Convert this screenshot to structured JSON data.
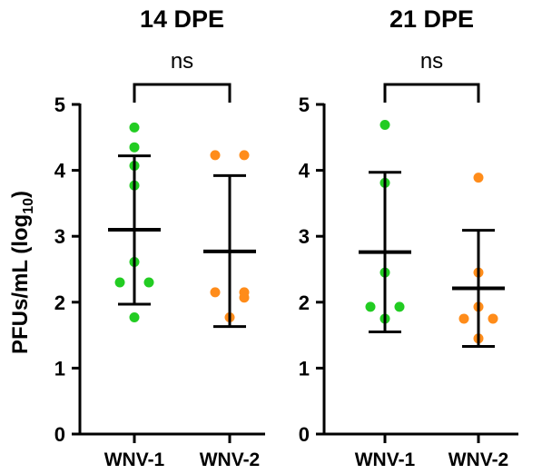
{
  "chart_data": {
    "type": "scatter",
    "ylabel": "PFUs/mL (log",
    "ylabel_sub": "10",
    "ylabel_close": ")",
    "ylim": [
      0,
      5
    ],
    "yticks": [
      "0",
      "1",
      "2",
      "3",
      "4",
      "5"
    ],
    "grid": false,
    "colors": {
      "WNV-1": "#22cc22",
      "WNV-2": "#ff8c1a"
    },
    "panels": [
      {
        "title": "14 DPE",
        "significance": "ns",
        "groups": [
          {
            "label": "WNV-1",
            "mean": 3.1,
            "sd_upper": 4.22,
            "sd_lower": 1.97,
            "points": [
              4.65,
              4.35,
              4.07,
              3.77,
              2.61,
              2.3,
              2.3,
              1.77
            ]
          },
          {
            "label": "WNV-2",
            "mean": 2.77,
            "sd_upper": 3.92,
            "sd_lower": 1.63,
            "points": [
              4.23,
              4.23,
              2.15,
              2.15,
              2.07,
              1.77
            ]
          }
        ]
      },
      {
        "title": "21 DPE",
        "significance": "ns",
        "groups": [
          {
            "label": "WNV-1",
            "mean": 2.76,
            "sd_upper": 3.97,
            "sd_lower": 1.55,
            "points": [
              4.69,
              3.81,
              2.45,
              1.93,
              1.93,
              1.75
            ]
          },
          {
            "label": "WNV-2",
            "mean": 2.21,
            "sd_upper": 3.09,
            "sd_lower": 1.33,
            "points": [
              3.89,
              2.45,
              1.93,
              1.75,
              1.75,
              1.45
            ]
          }
        ]
      }
    ]
  }
}
